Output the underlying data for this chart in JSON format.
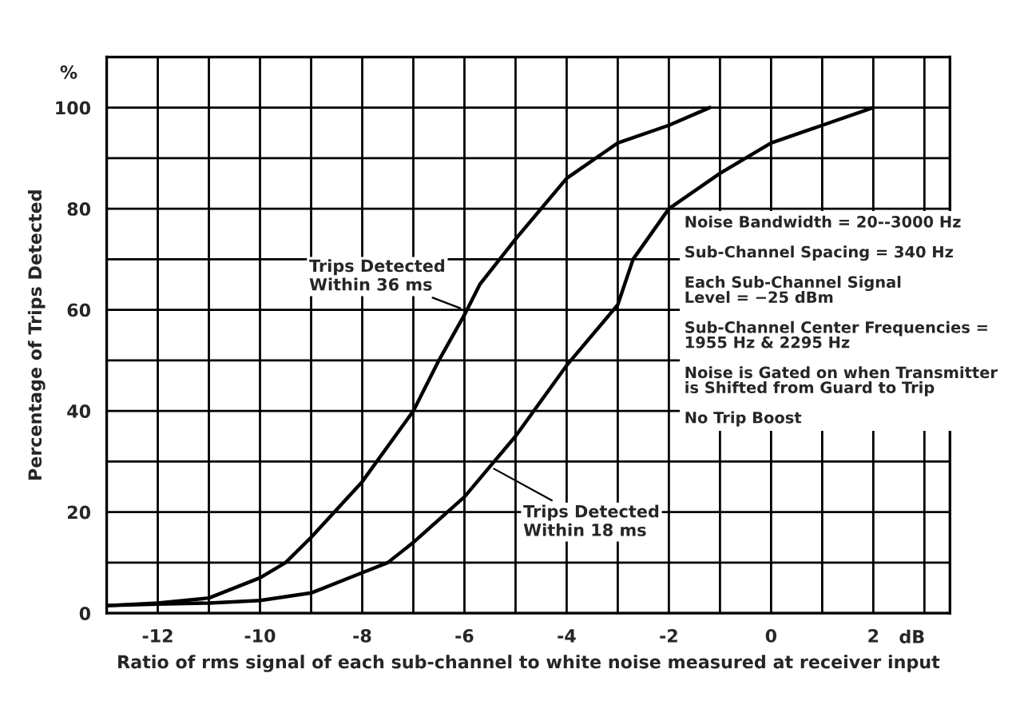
{
  "chart_data": {
    "type": "line",
    "xlabel": "Ratio of rms signal of each sub-channel to white noise measured at receiver input",
    "ylabel": "Percentage of Trips Detected",
    "series": [
      {
        "color": "#000000",
        "x": [
          -13,
          -12,
          -11,
          -10,
          -9.5,
          -9,
          -8,
          -7,
          -6.5,
          -6,
          -5.7,
          -5,
          -4,
          -3,
          -2,
          -1.2
        ],
        "values": [
          1.5,
          2,
          3,
          7,
          10,
          15,
          26,
          40,
          50,
          59,
          65,
          74,
          86,
          93,
          96.5,
          100
        ]
      },
      {
        "color": "#000000",
        "x": [
          -13,
          -12,
          -11,
          -10,
          -9,
          -8,
          -7.5,
          -7,
          -6,
          -5.5,
          -5,
          -4,
          -3,
          -2.7,
          -2,
          -1,
          0,
          1,
          2
        ],
        "values": [
          1.5,
          1.8,
          2,
          2.5,
          4,
          8,
          10,
          14,
          23,
          29,
          35,
          49,
          61,
          70,
          80,
          87,
          93,
          96.5,
          100
        ]
      }
    ],
    "xlim": [
      -13,
      3.5
    ],
    "ylim": [
      0,
      110
    ],
    "xticks": [
      -12,
      {
        "value": -11,
        "label": null
      },
      -10,
      {
        "value": -9,
        "label": null
      },
      -8,
      {
        "value": -7,
        "label": null
      },
      -6,
      {
        "value": -5,
        "label": null
      },
      -4,
      {
        "value": -3,
        "label": null
      },
      -2,
      {
        "value": -1,
        "label": null
      },
      0,
      {
        "value": 1,
        "label": null
      },
      2,
      {
        "value": 3,
        "label": null
      }
    ],
    "yticks": [
      0,
      {
        "value": 10,
        "label": null
      },
      20,
      {
        "value": 30,
        "label": null
      },
      40,
      {
        "value": 50,
        "label": null
      },
      60,
      {
        "value": 70,
        "label": null
      },
      80,
      {
        "value": 90,
        "label": null
      },
      100,
      {
        "value": 110,
        "label": null
      }
    ],
    "grid": true,
    "legend": false,
    "marker": "none",
    "line_style": "solid",
    "annotations": [
      {
        "text": "Trips Detected\nWithin 36 ms",
        "x": -6,
        "y": 60
      },
      {
        "text": "Trips Detected\nWithin 18 ms",
        "x": -5.5,
        "y": 29
      },
      "Noise Bandwidth = 20--3000 Hz\n\nSub-Channel Spacing = 340 Hz\n\nEach Sub-Channel Signal\nLevel = −25 dBm\n\nSub-Channel Center Frequencies =\n1955 Hz & 2295 Hz\n\nNoise is Gated on when Transmitter\nis Shifted from Guard to Trip\n\nNo Trip Boost",
      "%",
      "dB"
    ]
  }
}
